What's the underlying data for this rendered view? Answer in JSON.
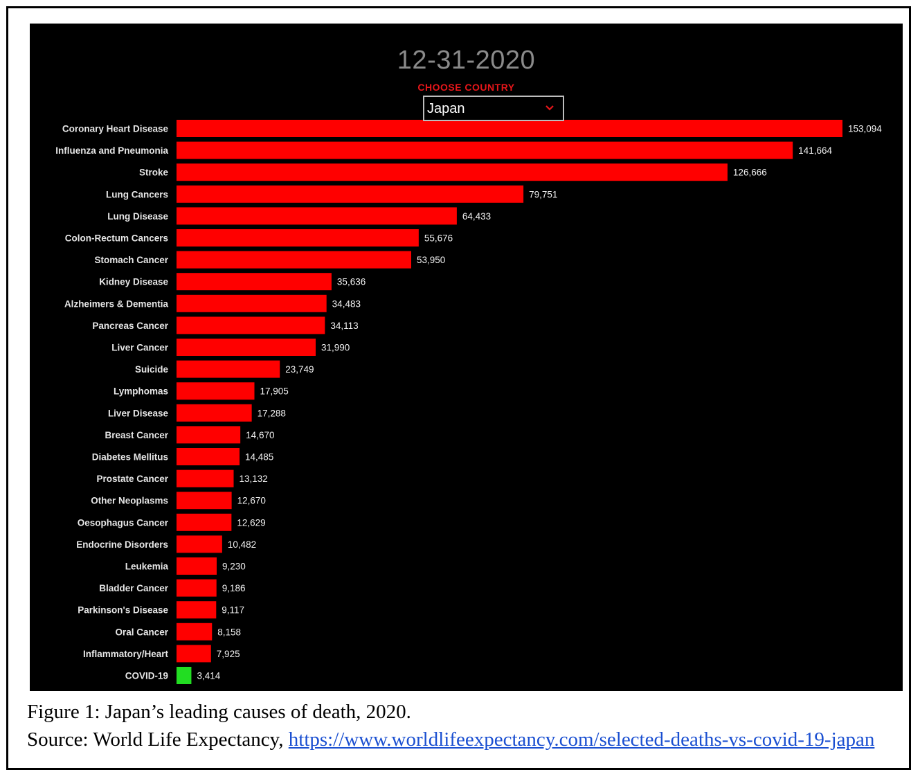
{
  "header": {
    "date": "12-31-2020",
    "choose_label": "CHOOSE COUNTRY",
    "country": "Japan"
  },
  "icons": {
    "dropdown": "chevron-down-icon"
  },
  "colors": {
    "bar": "#ff0000",
    "highlight": "#22dd22",
    "background": "#000000",
    "label": "#e6e6e6"
  },
  "caption": {
    "line1": "Figure 1: Japan’s leading causes of death, 2020.",
    "source_prefix": "Source: World Life Expectancy, ",
    "link": "https://www.worldlifeexpectancy.com/selected-deaths-vs-covid-19-japan"
  },
  "chart_data": {
    "type": "bar",
    "orientation": "horizontal",
    "title": "12-31-2020",
    "xlabel": "",
    "ylabel": "",
    "categories": [
      "Coronary Heart Disease",
      "Influenza and Pneumonia",
      "Stroke",
      "Lung Cancers",
      "Lung Disease",
      "Colon-Rectum Cancers",
      "Stomach Cancer",
      "Kidney Disease",
      "Alzheimers & Dementia",
      "Pancreas Cancer",
      "Liver Cancer",
      "Suicide",
      "Lymphomas",
      "Liver Disease",
      "Breast Cancer",
      "Diabetes Mellitus",
      "Prostate Cancer",
      "Other Neoplasms",
      "Oesophagus Cancer",
      "Endocrine Disorders",
      "Leukemia",
      "Bladder Cancer",
      "Parkinson's Disease",
      "Oral Cancer",
      "Inflammatory/Heart",
      "COVID-19"
    ],
    "values": [
      153094,
      141664,
      126666,
      79751,
      64433,
      55676,
      53950,
      35636,
      34483,
      34113,
      31990,
      23749,
      17905,
      17288,
      14670,
      14485,
      13132,
      12670,
      12629,
      10482,
      9230,
      9186,
      9117,
      8158,
      7925,
      3414
    ],
    "value_labels": [
      "153,094",
      "141,664",
      "126,666",
      "79,751",
      "64,433",
      "55,676",
      "53,950",
      "35,636",
      "34,483",
      "34,113",
      "31,990",
      "23,749",
      "17,905",
      "17,288",
      "14,670",
      "14,485",
      "13,132",
      "12,670",
      "12,629",
      "10,482",
      "9,230",
      "9,186",
      "9,117",
      "8,158",
      "7,925",
      "3,414"
    ],
    "highlight_category": "COVID-19",
    "xlim": [
      0,
      153094
    ],
    "grid": false,
    "legend": "none"
  }
}
